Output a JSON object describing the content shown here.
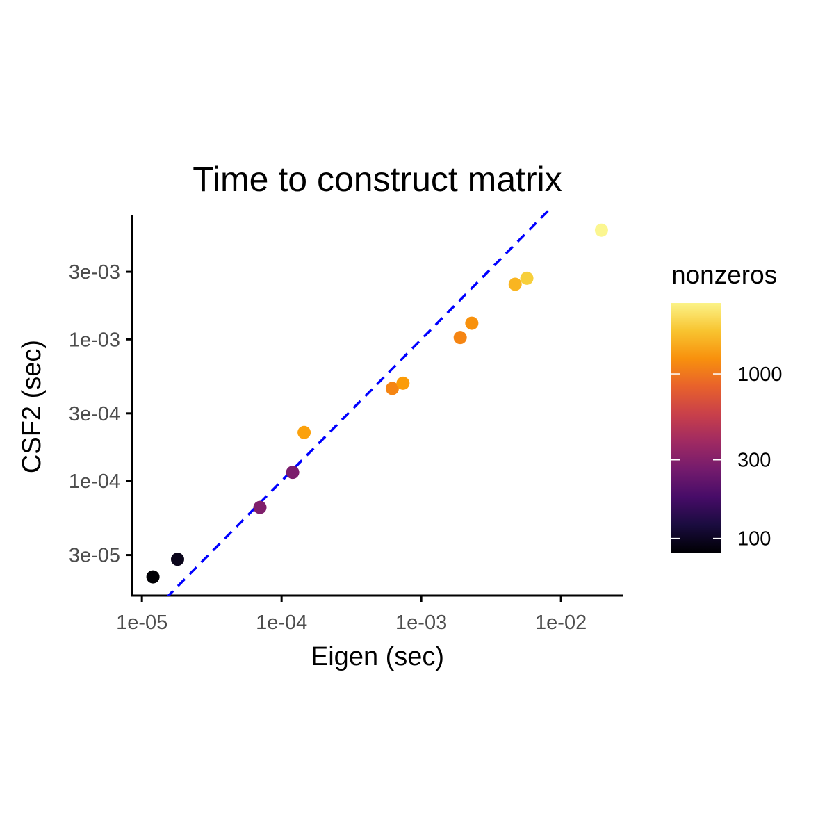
{
  "chart_data": {
    "type": "scatter",
    "title": "Time to construct matrix",
    "xlabel": "Eigen (sec)",
    "ylabel": "CSF2 (sec)",
    "x_scale": "log10",
    "y_scale": "log10",
    "xlim": [
      8.5e-06,
      0.028
    ],
    "ylim": [
      1.55e-05,
      0.0075
    ],
    "x_ticks": [
      {
        "value": 1e-05,
        "label": "1e-05"
      },
      {
        "value": 0.0001,
        "label": "1e-04"
      },
      {
        "value": 0.001,
        "label": "1e-03"
      },
      {
        "value": 0.01,
        "label": "1e-02"
      }
    ],
    "y_ticks": [
      {
        "value": 3e-05,
        "label": "3e-05"
      },
      {
        "value": 0.0001,
        "label": "1e-04"
      },
      {
        "value": 0.0003,
        "label": "3e-04"
      },
      {
        "value": 0.001,
        "label": "1e-03"
      },
      {
        "value": 0.003,
        "label": "3e-03"
      }
    ],
    "grid": false,
    "reference_line": {
      "slope": 1,
      "intercept": 0,
      "style": "dashed",
      "color": "#0000ff"
    },
    "points": [
      {
        "x": 1.2e-05,
        "y": 2.1e-05,
        "nonzeros": 75
      },
      {
        "x": 1.8e-05,
        "y": 2.8e-05,
        "nonzeros": 95
      },
      {
        "x": 7e-05,
        "y": 6.5e-05,
        "nonzeros": 280
      },
      {
        "x": 0.00012,
        "y": 0.000115,
        "nonzeros": 270
      },
      {
        "x": 0.000145,
        "y": 0.00022,
        "nonzeros": 1300
      },
      {
        "x": 0.00062,
        "y": 0.00045,
        "nonzeros": 1050
      },
      {
        "x": 0.00074,
        "y": 0.00049,
        "nonzeros": 1250
      },
      {
        "x": 0.0019,
        "y": 0.00103,
        "nonzeros": 1050
      },
      {
        "x": 0.0023,
        "y": 0.0013,
        "nonzeros": 1150
      },
      {
        "x": 0.0047,
        "y": 0.00245,
        "nonzeros": 1500
      },
      {
        "x": 0.0057,
        "y": 0.0027,
        "nonzeros": 1800
      },
      {
        "x": 0.0195,
        "y": 0.0059,
        "nonzeros": 2500
      }
    ],
    "legend": {
      "title": "nonzeros",
      "position": "right",
      "scale": "log10",
      "range": [
        82,
        2700
      ],
      "palette": "inferno",
      "ticks": [
        {
          "value": 100,
          "label": "100"
        },
        {
          "value": 300,
          "label": "300"
        },
        {
          "value": 1000,
          "label": "1000"
        }
      ]
    }
  },
  "colors": {
    "reference_line": "#0000ff",
    "axis": "#000000",
    "tick_label": "#4d4d4d",
    "inferno_stops": [
      "#000004",
      "#1b0c41",
      "#4a0c6b",
      "#781c6d",
      "#a52c60",
      "#cf4446",
      "#ed6925",
      "#fb9b06",
      "#f7d13d",
      "#fcffa4"
    ]
  }
}
